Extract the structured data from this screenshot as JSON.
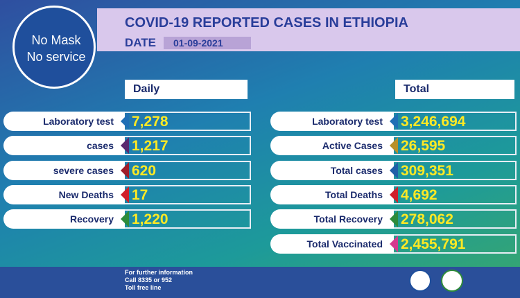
{
  "header": {
    "title": "COVID-19 REPORTED CASES IN ETHIOPIA",
    "date_label": "DATE",
    "date": "01-09-2021"
  },
  "badge": {
    "lines": [
      "No Mask",
      "No service"
    ]
  },
  "daily": {
    "heading": "Daily",
    "rows": [
      {
        "label": "Laboratory test",
        "value": "7,278",
        "color": "#1f6fb5"
      },
      {
        "label": "cases",
        "value": "1,217",
        "color": "#5a2a6e"
      },
      {
        "label": "severe cases",
        "value": "620",
        "color": "#a01e2a"
      },
      {
        "label": "New Deaths",
        "value": "17",
        "color": "#d0202a"
      },
      {
        "label": "Recovery",
        "value": "1,220",
        "color": "#2e8b3a"
      }
    ]
  },
  "total": {
    "heading": "Total",
    "rows": [
      {
        "label": "Laboratory test",
        "value": "3,246,694",
        "color": "#1f6fb5"
      },
      {
        "label": "Active Cases",
        "value": "26,595",
        "color": "#b8902a"
      },
      {
        "label": "Total cases",
        "value": "309,351",
        "color": "#1f5fa8"
      },
      {
        "label": "Total Deaths",
        "value": "4,692",
        "color": "#d0202a"
      },
      {
        "label": "Total Recovery",
        "value": "278,062",
        "color": "#2e8b3a"
      },
      {
        "label": "Total Vaccinated",
        "value": "2,455,791",
        "color": "#d6398f"
      }
    ]
  },
  "footer": {
    "lines": [
      "For further information",
      "Call 8335 or 952",
      "Toll free line"
    ]
  }
}
